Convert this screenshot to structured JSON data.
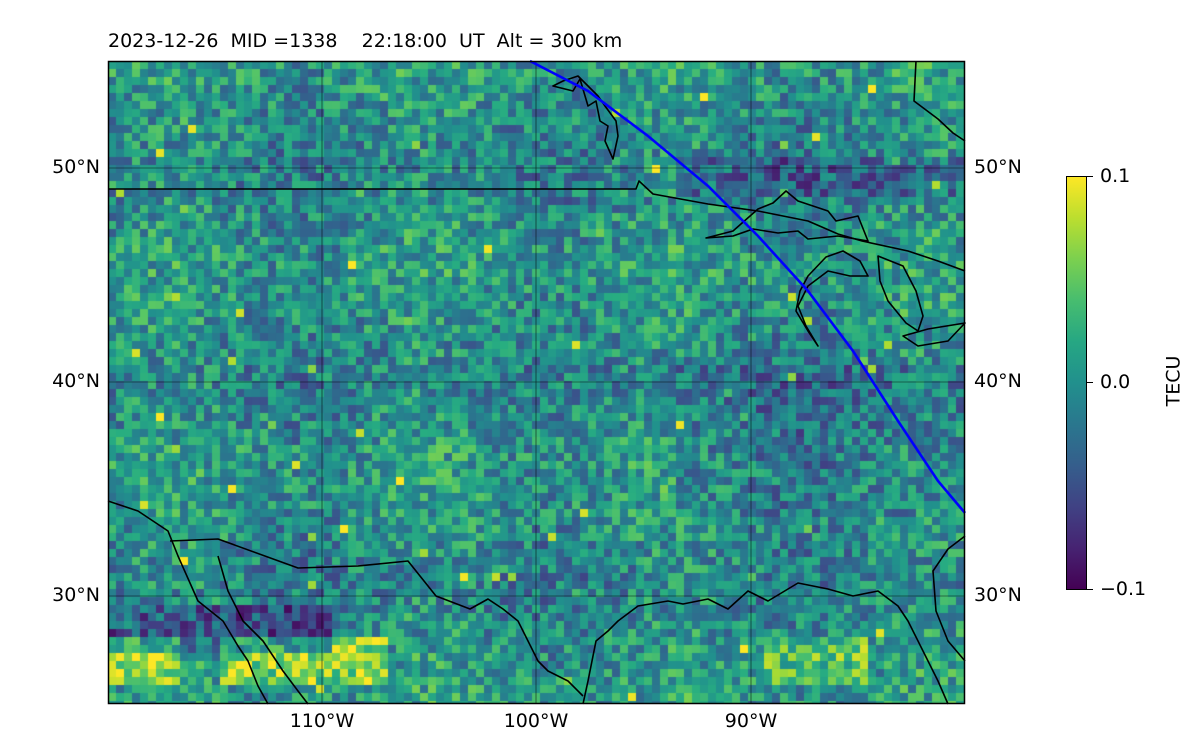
{
  "header": {
    "date": "2023-12-26",
    "mid": "MID =1338",
    "time": "22:18:00  UT",
    "alt": "Alt = 300 km"
  },
  "map": {
    "lon_range": [
      -120,
      -80
    ],
    "lat_range": [
      25,
      55
    ],
    "lat_ticks": [
      "30°N",
      "40°N",
      "50°N"
    ],
    "lon_ticks": [
      "110°W",
      "100°W",
      "90°W"
    ],
    "colormap": "viridis",
    "coast_color": "#000000",
    "track_color": "#0000ff"
  },
  "colorbar": {
    "label": "TECU",
    "ticks": [
      "0.1",
      "0.0",
      "−0.1"
    ],
    "range": [
      -0.1,
      0.1
    ]
  }
}
